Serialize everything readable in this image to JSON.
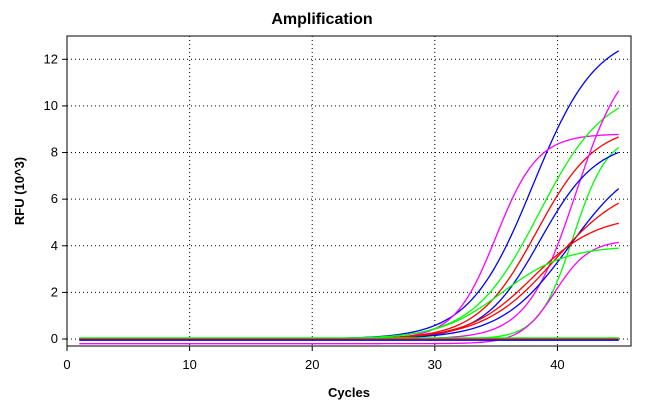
{
  "chart_data": {
    "type": "line",
    "title": "Amplification",
    "xlabel": "Cycles",
    "ylabel": "RFU (10^3)",
    "xlim": [
      0,
      46
    ],
    "ylim": [
      -0.3,
      13
    ],
    "xticks": [
      0,
      10,
      20,
      30,
      40
    ],
    "yticks": [
      0,
      2,
      4,
      6,
      8,
      10,
      12
    ],
    "grid": true,
    "legend": "none",
    "x_start": 1,
    "x_end": 45,
    "curve_model": "logistic: baseline + plateau / (1 + exp(-(cycle - midpoint) / slope))",
    "series": [
      {
        "color": "#0000ff",
        "baseline": 0.0,
        "plateau": 13.2,
        "midpoint": 38.0,
        "slope": 2.6
      },
      {
        "color": "#ff00ff",
        "baseline": 0.0,
        "plateau": 8.8,
        "midpoint": 35.0,
        "slope": 1.7
      },
      {
        "color": "#00ff00",
        "baseline": 0.0,
        "plateau": 10.8,
        "midpoint": 38.5,
        "slope": 2.7
      },
      {
        "color": "#ff0000",
        "baseline": 0.0,
        "plateau": 9.2,
        "midpoint": 38.3,
        "slope": 2.4
      },
      {
        "color": "#ff00ff",
        "baseline": 0.0,
        "plateau": 12.5,
        "midpoint": 41.5,
        "slope": 2.0
      },
      {
        "color": "#00ff00",
        "baseline": 0.0,
        "plateau": 8.8,
        "midpoint": 41.3,
        "slope": 1.4
      },
      {
        "color": "#0000ff",
        "baseline": 0.0,
        "plateau": 8.5,
        "midpoint": 38.6,
        "slope": 2.3
      },
      {
        "color": "#0000ff",
        "baseline": 0.0,
        "plateau": 8.0,
        "midpoint": 41.0,
        "slope": 2.8
      },
      {
        "color": "#ff0000",
        "baseline": 0.0,
        "plateau": 6.8,
        "midpoint": 39.8,
        "slope": 2.9
      },
      {
        "color": "#ff0000",
        "baseline": 0.0,
        "plateau": 5.3,
        "midpoint": 38.0,
        "slope": 2.6
      },
      {
        "color": "#ff00ff",
        "baseline": -0.2,
        "plateau": 4.45,
        "midpoint": 39.8,
        "slope": 1.4
      },
      {
        "color": "#00ff00",
        "baseline": 0.0,
        "plateau": 4.0,
        "midpoint": 35.5,
        "slope": 2.6
      },
      {
        "color": "#ff0000",
        "baseline": 0.0,
        "plateau": 0.0,
        "midpoint": 30.0,
        "slope": 1.0
      },
      {
        "color": "#00ff00",
        "baseline": 0.05,
        "plateau": 0.0,
        "midpoint": 30.0,
        "slope": 1.0
      },
      {
        "color": "#0000ff",
        "baseline": -0.05,
        "plateau": 0.0,
        "midpoint": 30.0,
        "slope": 1.0
      }
    ]
  }
}
